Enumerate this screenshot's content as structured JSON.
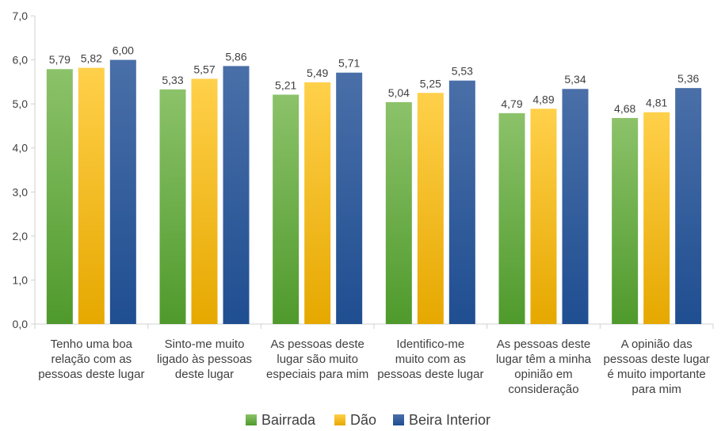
{
  "chart_data": {
    "type": "bar",
    "title": "",
    "xlabel": "",
    "ylabel": "",
    "ylim": [
      0,
      7
    ],
    "yticks": [
      "0,0",
      "1,0",
      "2,0",
      "3,0",
      "4,0",
      "5,0",
      "6,0",
      "7,0"
    ],
    "grid": false,
    "legend_position": "bottom",
    "categories": [
      [
        "Tenho uma boa",
        "relação com as",
        "pessoas deste lugar"
      ],
      [
        "Sinto-me muito",
        "ligado às pessoas",
        "deste lugar"
      ],
      [
        "As pessoas deste",
        "lugar são muito",
        "especiais para mim"
      ],
      [
        "Identifico-me",
        "muito com as",
        "pessoas deste lugar"
      ],
      [
        "As pessoas deste",
        "lugar têm a minha",
        "opinião em",
        "consideração"
      ],
      [
        "A opinião das",
        "pessoas deste lugar",
        "é muito importante",
        "para mim"
      ]
    ],
    "series": [
      {
        "name": "Bairrada",
        "color": "#70ad47",
        "values": [
          5.79,
          5.33,
          5.21,
          5.04,
          4.79,
          4.68
        ],
        "labels": [
          "5,79",
          "5,33",
          "5,21",
          "5,04",
          "4,79",
          "4,68"
        ]
      },
      {
        "name": "Dão",
        "color": "#ffc000",
        "values": [
          5.82,
          5.57,
          5.49,
          5.25,
          4.89,
          4.81
        ],
        "labels": [
          "5,82",
          "5,57",
          "5,49",
          "5,25",
          "4,89",
          "4,81"
        ]
      },
      {
        "name": "Beira Interior",
        "color": "#2e5597",
        "values": [
          6.0,
          5.86,
          5.71,
          5.53,
          5.34,
          5.36
        ],
        "labels": [
          "6,00",
          "5,86",
          "5,71",
          "5,53",
          "5,34",
          "5,36"
        ]
      }
    ]
  }
}
